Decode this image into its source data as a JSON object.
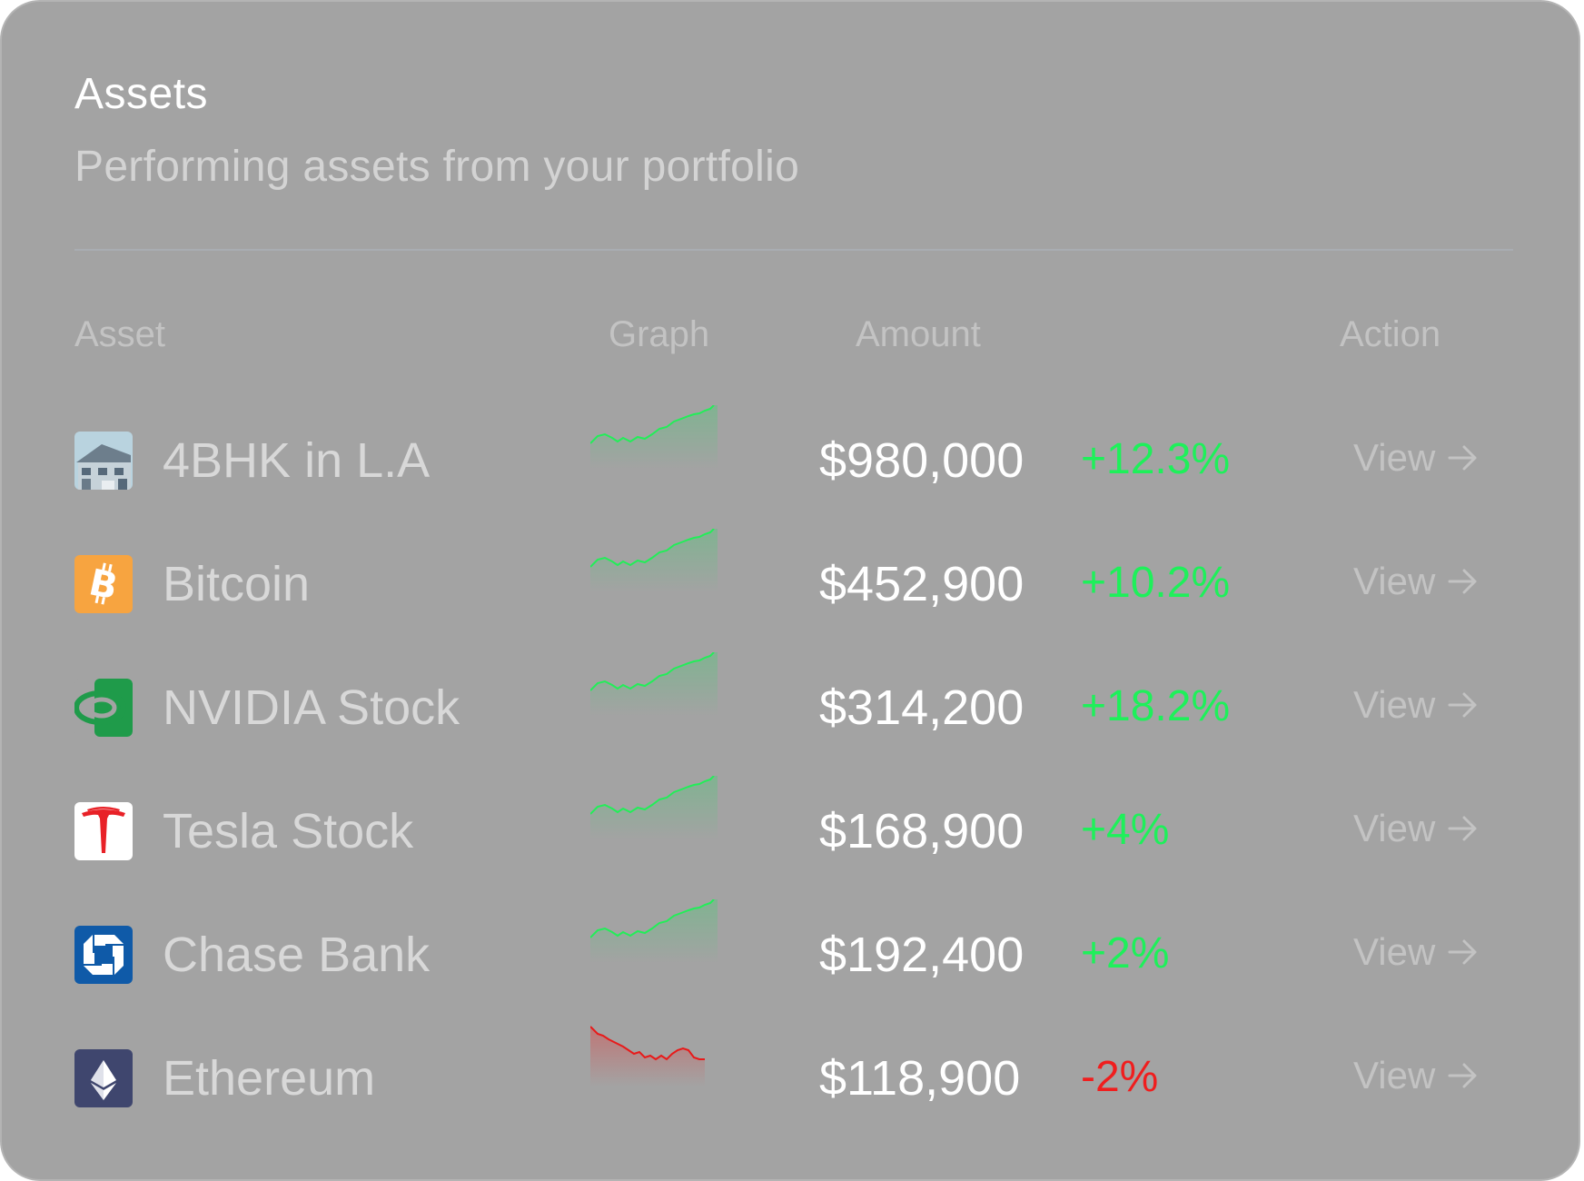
{
  "card": {
    "title": "Assets",
    "subtitle": "Performing assets from your portfolio"
  },
  "table": {
    "columns": {
      "asset": "Asset",
      "graph": "Graph",
      "amount": "Amount",
      "action": "Action"
    },
    "rows": [
      {
        "name": "4BHK in L.A",
        "icon": "house-icon",
        "amount": "$980,000",
        "change": "+12.3%",
        "trend": "up",
        "action": "View"
      },
      {
        "name": "Bitcoin",
        "icon": "bitcoin-icon",
        "amount": "$452,900",
        "change": "+10.2%",
        "trend": "up",
        "action": "View"
      },
      {
        "name": "NVIDIA Stock",
        "icon": "nvidia-icon",
        "amount": "$314,200",
        "change": "+18.2%",
        "trend": "up",
        "action": "View"
      },
      {
        "name": "Tesla Stock",
        "icon": "tesla-icon",
        "amount": "$168,900",
        "change": "+4%",
        "trend": "up",
        "action": "View"
      },
      {
        "name": "Chase Bank",
        "icon": "chase-icon",
        "amount": "$192,400",
        "change": "+2%",
        "trend": "up",
        "action": "View"
      },
      {
        "name": "Ethereum",
        "icon": "ethereum-icon",
        "amount": "$118,900",
        "change": "-2%",
        "trend": "down",
        "action": "View"
      }
    ]
  },
  "colors": {
    "card_bg": "#a3a3a3",
    "positive": "#1ef05a",
    "negative": "#f01e1e",
    "bitcoin": "#f7a440",
    "nvidia": "#1f9b4a",
    "tesla": "#e82127",
    "chase": "#0f5aa8",
    "ethereum": "#3f466e"
  }
}
